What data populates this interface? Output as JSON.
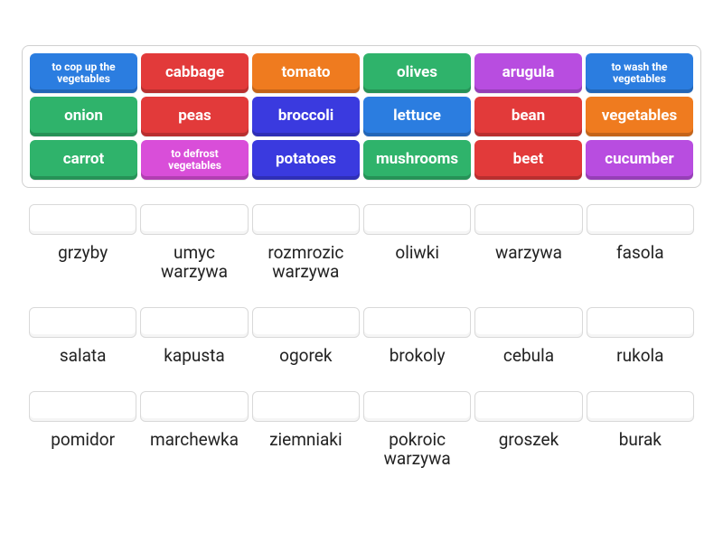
{
  "bank": {
    "rows": 3,
    "cols": 6,
    "tiles": [
      {
        "label": "to cop up the vegetables",
        "color": "#2b7de0",
        "small": true
      },
      {
        "label": "cabbage",
        "color": "#e23a3a"
      },
      {
        "label": "tomato",
        "color": "#ef7b1f"
      },
      {
        "label": "olives",
        "color": "#2fb36b"
      },
      {
        "label": "arugula",
        "color": "#b84de0"
      },
      {
        "label": "to wash the vegetables",
        "color": "#2b7de0",
        "small": true
      },
      {
        "label": "onion",
        "color": "#2fb36b"
      },
      {
        "label": "peas",
        "color": "#e23a3a"
      },
      {
        "label": "broccoli",
        "color": "#3a3adf"
      },
      {
        "label": "lettuce",
        "color": "#2b7de0"
      },
      {
        "label": "bean",
        "color": "#e23a3a"
      },
      {
        "label": "vegetables",
        "color": "#ef7b1f"
      },
      {
        "label": "carrot",
        "color": "#2fb36b"
      },
      {
        "label": "to defrost vegetables",
        "color": "#d94ed9",
        "small": true
      },
      {
        "label": "potatoes",
        "color": "#3a3adf"
      },
      {
        "label": "mushrooms",
        "color": "#2fb36b"
      },
      {
        "label": "beet",
        "color": "#e23a3a"
      },
      {
        "label": "cucumber",
        "color": "#b84de0"
      }
    ]
  },
  "targets": [
    {
      "label": "grzyby"
    },
    {
      "label": "umyc warzywa"
    },
    {
      "label": "rozmrozic warzywa"
    },
    {
      "label": "oliwki"
    },
    {
      "label": "warzywa"
    },
    {
      "label": "fasola"
    },
    {
      "label": "salata"
    },
    {
      "label": "kapusta"
    },
    {
      "label": "ogorek"
    },
    {
      "label": "brokoly"
    },
    {
      "label": "cebula"
    },
    {
      "label": "rukola"
    },
    {
      "label": "pomidor"
    },
    {
      "label": "marchewka"
    },
    {
      "label": "ziemniaki"
    },
    {
      "label": "pokroic warzywa"
    },
    {
      "label": "groszek"
    },
    {
      "label": "burak"
    }
  ],
  "style": {
    "bank_border": "#d0d0d0",
    "drop_border": "#d9d9d9",
    "text_color": "#222222",
    "background": "#ffffff",
    "tile_font_size": 17,
    "tile_small_font_size": 12,
    "label_font_size": 19
  }
}
